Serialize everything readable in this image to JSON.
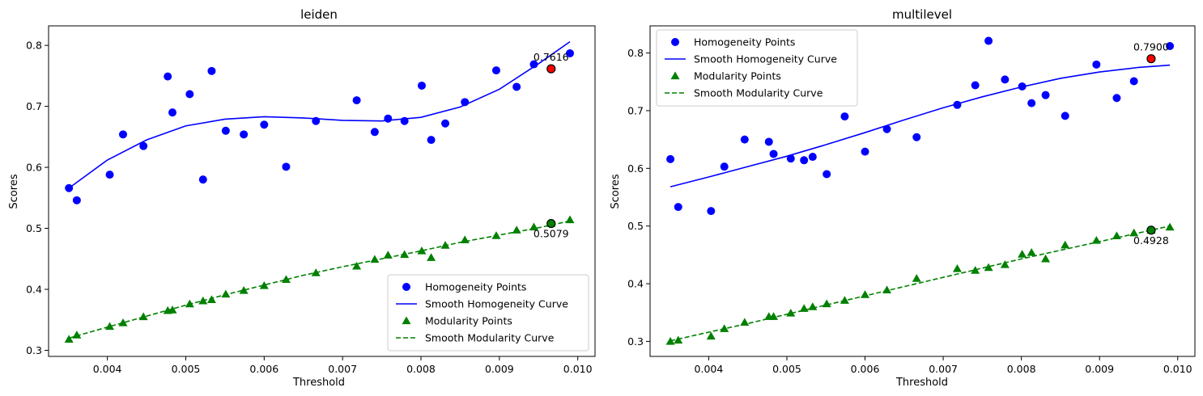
{
  "chart_data": [
    {
      "type": "scatter",
      "title": "leiden",
      "xlabel": "Threshold",
      "ylabel": "Scores",
      "xlim": [
        0.00325,
        0.01022
      ],
      "ylim": [
        0.29,
        0.832
      ],
      "xticks": [
        0.004,
        0.005,
        0.006,
        0.007,
        0.008,
        0.009,
        0.01
      ],
      "xtick_labels": [
        "0.004",
        "0.005",
        "0.006",
        "0.007",
        "0.008",
        "0.009",
        "0.010"
      ],
      "yticks": [
        0.3,
        0.4,
        0.5,
        0.6,
        0.7,
        0.8
      ],
      "ytick_labels": [
        "0.3",
        "0.4",
        "0.5",
        "0.6",
        "0.7",
        "0.8"
      ],
      "grid": false,
      "legend_position": "lower-right",
      "series": [
        {
          "name": "Homogeneity Points",
          "kind": "points",
          "marker": "circle",
          "color": "#0000ff",
          "x": [
            0.00351,
            0.00361,
            0.00403,
            0.0042,
            0.00446,
            0.00477,
            0.00483,
            0.00505,
            0.00522,
            0.00533,
            0.00551,
            0.00574,
            0.006,
            0.00628,
            0.00666,
            0.00718,
            0.00741,
            0.00758,
            0.00779,
            0.00801,
            0.00813,
            0.00831,
            0.00856,
            0.00896,
            0.00922,
            0.00944,
            0.00966,
            0.0099
          ],
          "y": [
            0.566,
            0.546,
            0.588,
            0.654,
            0.635,
            0.749,
            0.69,
            0.72,
            0.58,
            0.758,
            0.66,
            0.654,
            0.67,
            0.601,
            0.676,
            0.71,
            0.658,
            0.68,
            0.676,
            0.734,
            0.645,
            0.672,
            0.707,
            0.759,
            0.732,
            0.769,
            0.762,
            0.787
          ]
        },
        {
          "name": "Smooth Homogeneity Curve",
          "kind": "line",
          "dash": "solid",
          "color": "#0000ff",
          "x": [
            0.00351,
            0.004,
            0.0045,
            0.005,
            0.0055,
            0.006,
            0.0065,
            0.007,
            0.0075,
            0.008,
            0.0085,
            0.009,
            0.0095,
            0.0099
          ],
          "y": [
            0.566,
            0.612,
            0.645,
            0.668,
            0.679,
            0.683,
            0.681,
            0.677,
            0.676,
            0.682,
            0.699,
            0.728,
            0.77,
            0.806
          ]
        },
        {
          "name": "Modularity Points",
          "kind": "points",
          "marker": "triangle",
          "color": "#008000",
          "x": [
            0.00351,
            0.00361,
            0.00403,
            0.0042,
            0.00446,
            0.00477,
            0.00483,
            0.00505,
            0.00522,
            0.00533,
            0.00551,
            0.00574,
            0.006,
            0.00628,
            0.00666,
            0.00718,
            0.00741,
            0.00758,
            0.00779,
            0.00801,
            0.00813,
            0.00831,
            0.00856,
            0.00896,
            0.00922,
            0.00944,
            0.00966,
            0.0099
          ],
          "y": [
            0.318,
            0.325,
            0.339,
            0.345,
            0.355,
            0.365,
            0.366,
            0.376,
            0.381,
            0.383,
            0.392,
            0.398,
            0.406,
            0.416,
            0.427,
            0.438,
            0.449,
            0.456,
            0.457,
            0.463,
            0.452,
            0.472,
            0.481,
            0.488,
            0.497,
            0.502,
            0.508,
            0.514
          ]
        },
        {
          "name": "Smooth Modularity Curve",
          "kind": "line",
          "dash": "dashed",
          "color": "#008000",
          "x": [
            0.00351,
            0.004,
            0.0045,
            0.005,
            0.0055,
            0.006,
            0.0065,
            0.007,
            0.0075,
            0.008,
            0.0085,
            0.009,
            0.0095,
            0.0099
          ],
          "y": [
            0.32,
            0.338,
            0.356,
            0.374,
            0.391,
            0.407,
            0.423,
            0.437,
            0.45,
            0.463,
            0.477,
            0.489,
            0.501,
            0.512
          ]
        }
      ],
      "highlights": [
        {
          "x": 0.00966,
          "y": 0.7616,
          "color": "#ff0000",
          "label": "0.7616",
          "label_pos": "above"
        },
        {
          "x": 0.00966,
          "y": 0.5079,
          "color": "#008000",
          "label": "0.5079",
          "label_pos": "below"
        }
      ]
    },
    {
      "type": "scatter",
      "title": "multilevel",
      "xlabel": "Threshold",
      "ylabel": "Scores",
      "xlim": [
        0.00325,
        0.01022
      ],
      "ylim": [
        0.274,
        0.847
      ],
      "xticks": [
        0.004,
        0.005,
        0.006,
        0.007,
        0.008,
        0.009,
        0.01
      ],
      "xtick_labels": [
        "0.004",
        "0.005",
        "0.006",
        "0.007",
        "0.008",
        "0.009",
        "0.010"
      ],
      "yticks": [
        0.3,
        0.4,
        0.5,
        0.6,
        0.7,
        0.8
      ],
      "ytick_labels": [
        "0.3",
        "0.4",
        "0.5",
        "0.6",
        "0.7",
        "0.8"
      ],
      "grid": false,
      "legend_position": "upper-left",
      "series": [
        {
          "name": "Homogeneity Points",
          "kind": "points",
          "marker": "circle",
          "color": "#0000ff",
          "x": [
            0.00351,
            0.00361,
            0.00403,
            0.0042,
            0.00446,
            0.00477,
            0.00483,
            0.00505,
            0.00522,
            0.00533,
            0.00551,
            0.00574,
            0.006,
            0.00628,
            0.00666,
            0.00718,
            0.00741,
            0.00758,
            0.00779,
            0.00801,
            0.00813,
            0.00831,
            0.00856,
            0.00896,
            0.00922,
            0.00944,
            0.00966,
            0.0099
          ],
          "y": [
            0.616,
            0.533,
            0.526,
            0.603,
            0.65,
            0.646,
            0.625,
            0.617,
            0.614,
            0.62,
            0.59,
            0.69,
            0.629,
            0.668,
            0.654,
            0.71,
            0.744,
            0.821,
            0.754,
            0.742,
            0.713,
            0.727,
            0.691,
            0.78,
            0.722,
            0.751,
            0.79,
            0.812
          ]
        },
        {
          "name": "Smooth Homogeneity Curve",
          "kind": "line",
          "dash": "solid",
          "color": "#0000ff",
          "x": [
            0.00351,
            0.004,
            0.0045,
            0.005,
            0.0055,
            0.006,
            0.0065,
            0.007,
            0.0075,
            0.008,
            0.0085,
            0.009,
            0.0095,
            0.0099
          ],
          "y": [
            0.568,
            0.585,
            0.603,
            0.621,
            0.641,
            0.662,
            0.684,
            0.705,
            0.724,
            0.741,
            0.756,
            0.767,
            0.775,
            0.779
          ]
        },
        {
          "name": "Modularity Points",
          "kind": "points",
          "marker": "triangle",
          "color": "#008000",
          "x": [
            0.00351,
            0.00361,
            0.00403,
            0.0042,
            0.00446,
            0.00477,
            0.00483,
            0.00505,
            0.00522,
            0.00533,
            0.00551,
            0.00574,
            0.006,
            0.00628,
            0.00666,
            0.00718,
            0.00741,
            0.00758,
            0.00779,
            0.00801,
            0.00813,
            0.00831,
            0.00856,
            0.00896,
            0.00922,
            0.00944,
            0.00966,
            0.0099
          ],
          "y": [
            0.3,
            0.302,
            0.309,
            0.322,
            0.333,
            0.343,
            0.343,
            0.349,
            0.357,
            0.36,
            0.365,
            0.371,
            0.381,
            0.389,
            0.409,
            0.426,
            0.423,
            0.428,
            0.433,
            0.451,
            0.454,
            0.443,
            0.467,
            0.475,
            0.483,
            0.488,
            0.4928,
            0.498
          ]
        },
        {
          "name": "Smooth Modularity Curve",
          "kind": "line",
          "dash": "dashed",
          "color": "#008000",
          "x": [
            0.00351,
            0.004,
            0.0045,
            0.005,
            0.0055,
            0.006,
            0.0065,
            0.007,
            0.0075,
            0.008,
            0.0085,
            0.009,
            0.0095,
            0.0099
          ],
          "y": [
            0.301,
            0.316,
            0.331,
            0.347,
            0.363,
            0.379,
            0.395,
            0.411,
            0.427,
            0.443,
            0.458,
            0.473,
            0.488,
            0.5
          ]
        }
      ],
      "highlights": [
        {
          "x": 0.00966,
          "y": 0.79,
          "color": "#ff0000",
          "label": "0.7900",
          "label_pos": "above"
        },
        {
          "x": 0.00966,
          "y": 0.4928,
          "color": "#008000",
          "label": "0.4928",
          "label_pos": "below"
        }
      ]
    }
  ]
}
